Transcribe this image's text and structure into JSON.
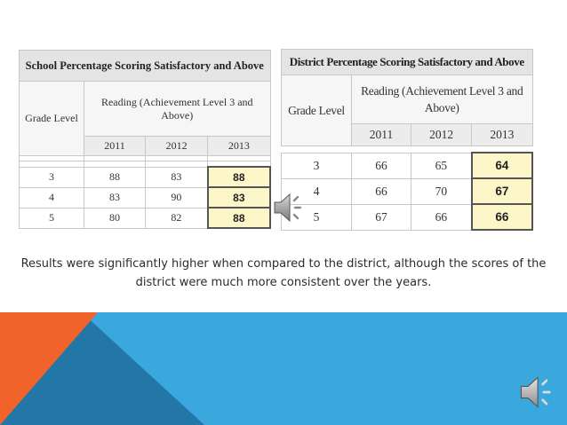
{
  "school_table": {
    "title": "School Percentage Scoring Satisfactory and Above",
    "grade_header": "Grade Level",
    "reading_header": "Reading (Achievement Level 3 and Above)",
    "years": [
      "2011",
      "2012",
      "2013"
    ],
    "rows": [
      {
        "grade": "3",
        "values": [
          "88",
          "83",
          "88"
        ]
      },
      {
        "grade": "4",
        "values": [
          "83",
          "90",
          "83"
        ]
      },
      {
        "grade": "5",
        "values": [
          "80",
          "82",
          "88"
        ]
      }
    ]
  },
  "district_table": {
    "title": "District Percentage Scoring Satisfactory and Above",
    "grade_header": "Grade Level",
    "reading_header": "Reading (Achievement Level 3 and Above)",
    "years": [
      "2011",
      "2012",
      "2013"
    ],
    "rows": [
      {
        "grade": "3",
        "values": [
          "66",
          "65",
          "64"
        ]
      },
      {
        "grade": "4",
        "values": [
          "66",
          "70",
          "67"
        ]
      },
      {
        "grade": "5",
        "values": [
          "67",
          "66",
          "66"
        ]
      }
    ]
  },
  "caption": "Results were significantly higher when compared to the district, although the scores of the district were much more consistent over the years.",
  "colors": {
    "highlight": "#fdf6c9",
    "accent_blue": "#3aa8dd",
    "accent_orange": "#f2622b"
  },
  "icons": [
    "speaker-icon",
    "speaker-icon"
  ]
}
